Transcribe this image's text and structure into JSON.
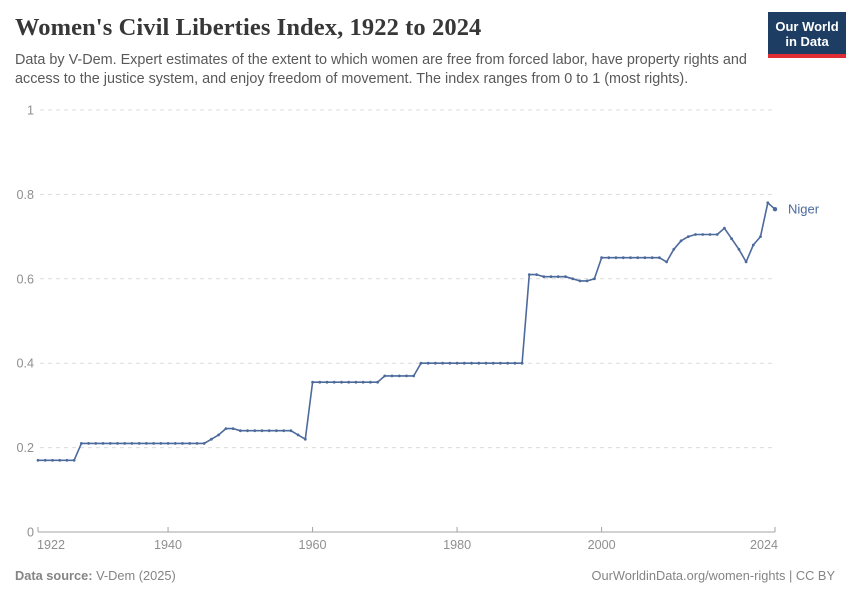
{
  "header": {
    "title": "Women's Civil Liberties Index, 1922 to 2024",
    "subtitle": "Data by V-Dem. Expert estimates of the extent to which women are free from forced labor, have property rights and access to the justice system, and enjoy freedom of movement. The index ranges from 0 to 1 (most rights).",
    "logo": {
      "line1": "Our World",
      "line2": "in Data"
    }
  },
  "chart_data": {
    "type": "line",
    "title": "Women's Civil Liberties Index, 1922 to 2024",
    "xlabel": "",
    "ylabel": "",
    "xlim": [
      1922,
      2024
    ],
    "ylim": [
      0,
      1
    ],
    "xticks": [
      1922,
      1940,
      1960,
      1980,
      2000,
      2024
    ],
    "yticks": [
      0,
      0.2,
      0.4,
      0.6,
      0.8,
      1
    ],
    "ytick_labels": [
      "0",
      "0.2",
      "0.4",
      "0.6",
      "0.8",
      "1"
    ],
    "grid": "horizontal-dashed",
    "legend_position": "end-of-line-label",
    "end_label": "Niger",
    "series": [
      {
        "name": "Niger",
        "color": "#4c6a9c",
        "x": [
          1922,
          1923,
          1924,
          1925,
          1926,
          1927,
          1928,
          1929,
          1930,
          1931,
          1932,
          1933,
          1934,
          1935,
          1936,
          1937,
          1938,
          1939,
          1940,
          1941,
          1942,
          1943,
          1944,
          1945,
          1946,
          1947,
          1948,
          1949,
          1950,
          1951,
          1952,
          1953,
          1954,
          1955,
          1956,
          1957,
          1958,
          1959,
          1960,
          1961,
          1962,
          1963,
          1964,
          1965,
          1966,
          1967,
          1968,
          1969,
          1970,
          1971,
          1972,
          1973,
          1974,
          1975,
          1976,
          1977,
          1978,
          1979,
          1980,
          1981,
          1982,
          1983,
          1984,
          1985,
          1986,
          1987,
          1988,
          1989,
          1990,
          1991,
          1992,
          1993,
          1994,
          1995,
          1996,
          1997,
          1998,
          1999,
          2000,
          2001,
          2002,
          2003,
          2004,
          2005,
          2006,
          2007,
          2008,
          2009,
          2010,
          2011,
          2012,
          2013,
          2014,
          2015,
          2016,
          2017,
          2018,
          2019,
          2020,
          2021,
          2022,
          2023,
          2024
        ],
        "values": [
          0.17,
          0.17,
          0.17,
          0.17,
          0.17,
          0.17,
          0.21,
          0.21,
          0.21,
          0.21,
          0.21,
          0.21,
          0.21,
          0.21,
          0.21,
          0.21,
          0.21,
          0.21,
          0.21,
          0.21,
          0.21,
          0.21,
          0.21,
          0.21,
          0.22,
          0.23,
          0.245,
          0.245,
          0.24,
          0.24,
          0.24,
          0.24,
          0.24,
          0.24,
          0.24,
          0.24,
          0.23,
          0.22,
          0.355,
          0.355,
          0.355,
          0.355,
          0.355,
          0.355,
          0.355,
          0.355,
          0.355,
          0.355,
          0.37,
          0.37,
          0.37,
          0.37,
          0.37,
          0.4,
          0.4,
          0.4,
          0.4,
          0.4,
          0.4,
          0.4,
          0.4,
          0.4,
          0.4,
          0.4,
          0.4,
          0.4,
          0.4,
          0.4,
          0.61,
          0.61,
          0.605,
          0.605,
          0.605,
          0.605,
          0.6,
          0.595,
          0.595,
          0.6,
          0.65,
          0.65,
          0.65,
          0.65,
          0.65,
          0.65,
          0.65,
          0.65,
          0.65,
          0.64,
          0.67,
          0.69,
          0.7,
          0.705,
          0.705,
          0.705,
          0.705,
          0.72,
          0.695,
          0.67,
          0.64,
          0.68,
          0.7,
          0.78,
          0.765
        ]
      }
    ]
  },
  "footer": {
    "source_label": "Data source:",
    "source_value": " V-Dem (2025)",
    "link": "OurWorldinData.org/women-rights | CC BY"
  },
  "colors": {
    "line": "#4c6a9c",
    "axis_text": "#8f8f8f",
    "grid": "#dcdcdc",
    "axis_line": "#a3a3a3",
    "logo_bg": "#1d3d63",
    "logo_stripe": "#e02d33"
  }
}
